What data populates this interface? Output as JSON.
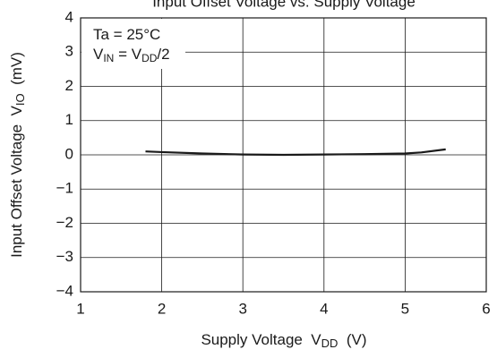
{
  "chart_data": {
    "type": "line",
    "title": "Input Offset Voltage vs. Supply Voltage",
    "x_label": {
      "parts": [
        "Supply Voltage  V",
        "DD",
        "  (V)"
      ]
    },
    "y_label": {
      "parts": [
        "Input Offset Voltage  V",
        "IO",
        "  (mV)"
      ]
    },
    "annotations": [
      {
        "parts": [
          "Ta = 25°C"
        ]
      },
      {
        "parts": [
          "V",
          "IN",
          " = V",
          "DD",
          "/2"
        ]
      }
    ],
    "x": [
      1.8,
      2.0,
      2.5,
      3.0,
      3.5,
      4.0,
      4.5,
      5.0,
      5.2,
      5.5
    ],
    "series": [
      {
        "color": "#1a1a1a",
        "values": [
          0.1,
          0.08,
          0.04,
          0.01,
          0.0,
          0.01,
          0.02,
          0.04,
          0.07,
          0.16
        ]
      }
    ],
    "xlim": [
      1,
      6
    ],
    "xticks": [
      1,
      2,
      3,
      4,
      5,
      6
    ],
    "ylim": [
      -4,
      4
    ],
    "yticks": [
      {
        "value": -4,
        "label": "−4"
      },
      {
        "value": -3,
        "label": "−3"
      },
      {
        "value": -2,
        "label": "−2"
      },
      {
        "value": -1,
        "label": "−1"
      },
      0,
      1,
      2,
      3,
      4
    ],
    "grid": true
  }
}
